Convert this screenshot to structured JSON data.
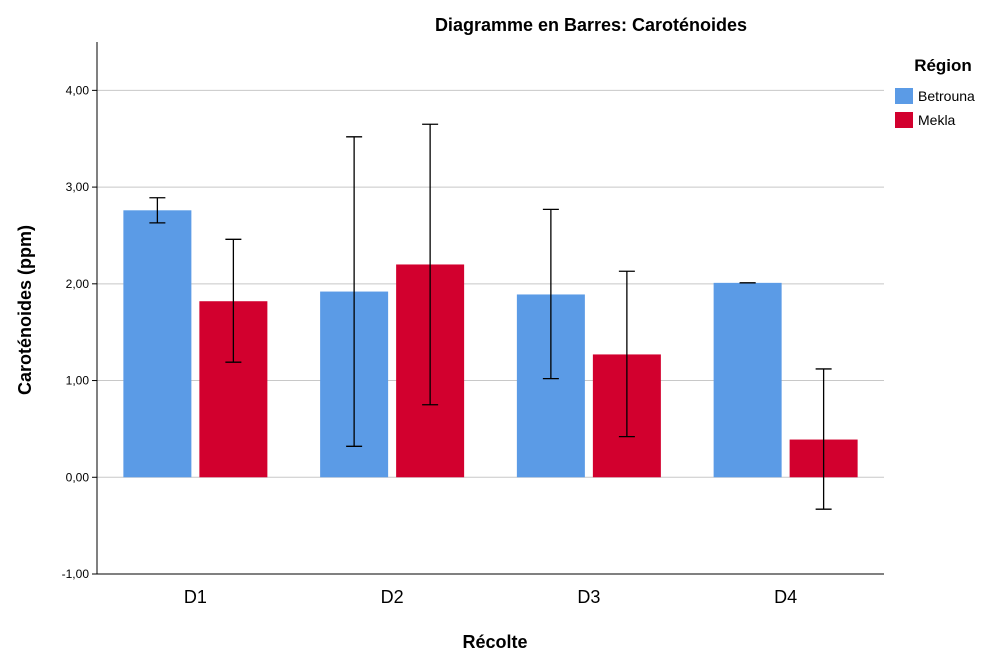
{
  "chart_data": {
    "type": "bar",
    "title": "Diagramme en Barres:  Caroténoides",
    "xlabel": "Récolte",
    "ylabel": "Caroténoides (ppm)",
    "categories": [
      "D1",
      "D2",
      "D3",
      "D4"
    ],
    "ylim": [
      -1,
      4.5
    ],
    "yticks": [
      -1,
      0,
      1,
      2,
      3,
      4
    ],
    "ytick_labels": [
      "-1,00",
      "0,00",
      "1,00",
      "2,00",
      "3,00",
      "4,00"
    ],
    "grid": true,
    "legend_title": "Région",
    "legend_position": "top-right",
    "series": [
      {
        "name": "Betrouna",
        "color": "#5b9be6",
        "values": [
          2.76,
          1.92,
          1.89,
          2.01
        ],
        "error_low": [
          2.63,
          0.32,
          1.02,
          2.01
        ],
        "error_high": [
          2.89,
          3.52,
          2.77,
          2.01
        ]
      },
      {
        "name": "Mekla",
        "color": "#d2002e",
        "values": [
          1.82,
          2.2,
          1.27,
          0.39
        ],
        "error_low": [
          1.19,
          0.75,
          0.42,
          -0.33
        ],
        "error_high": [
          2.46,
          3.65,
          2.13,
          1.12
        ]
      }
    ]
  }
}
